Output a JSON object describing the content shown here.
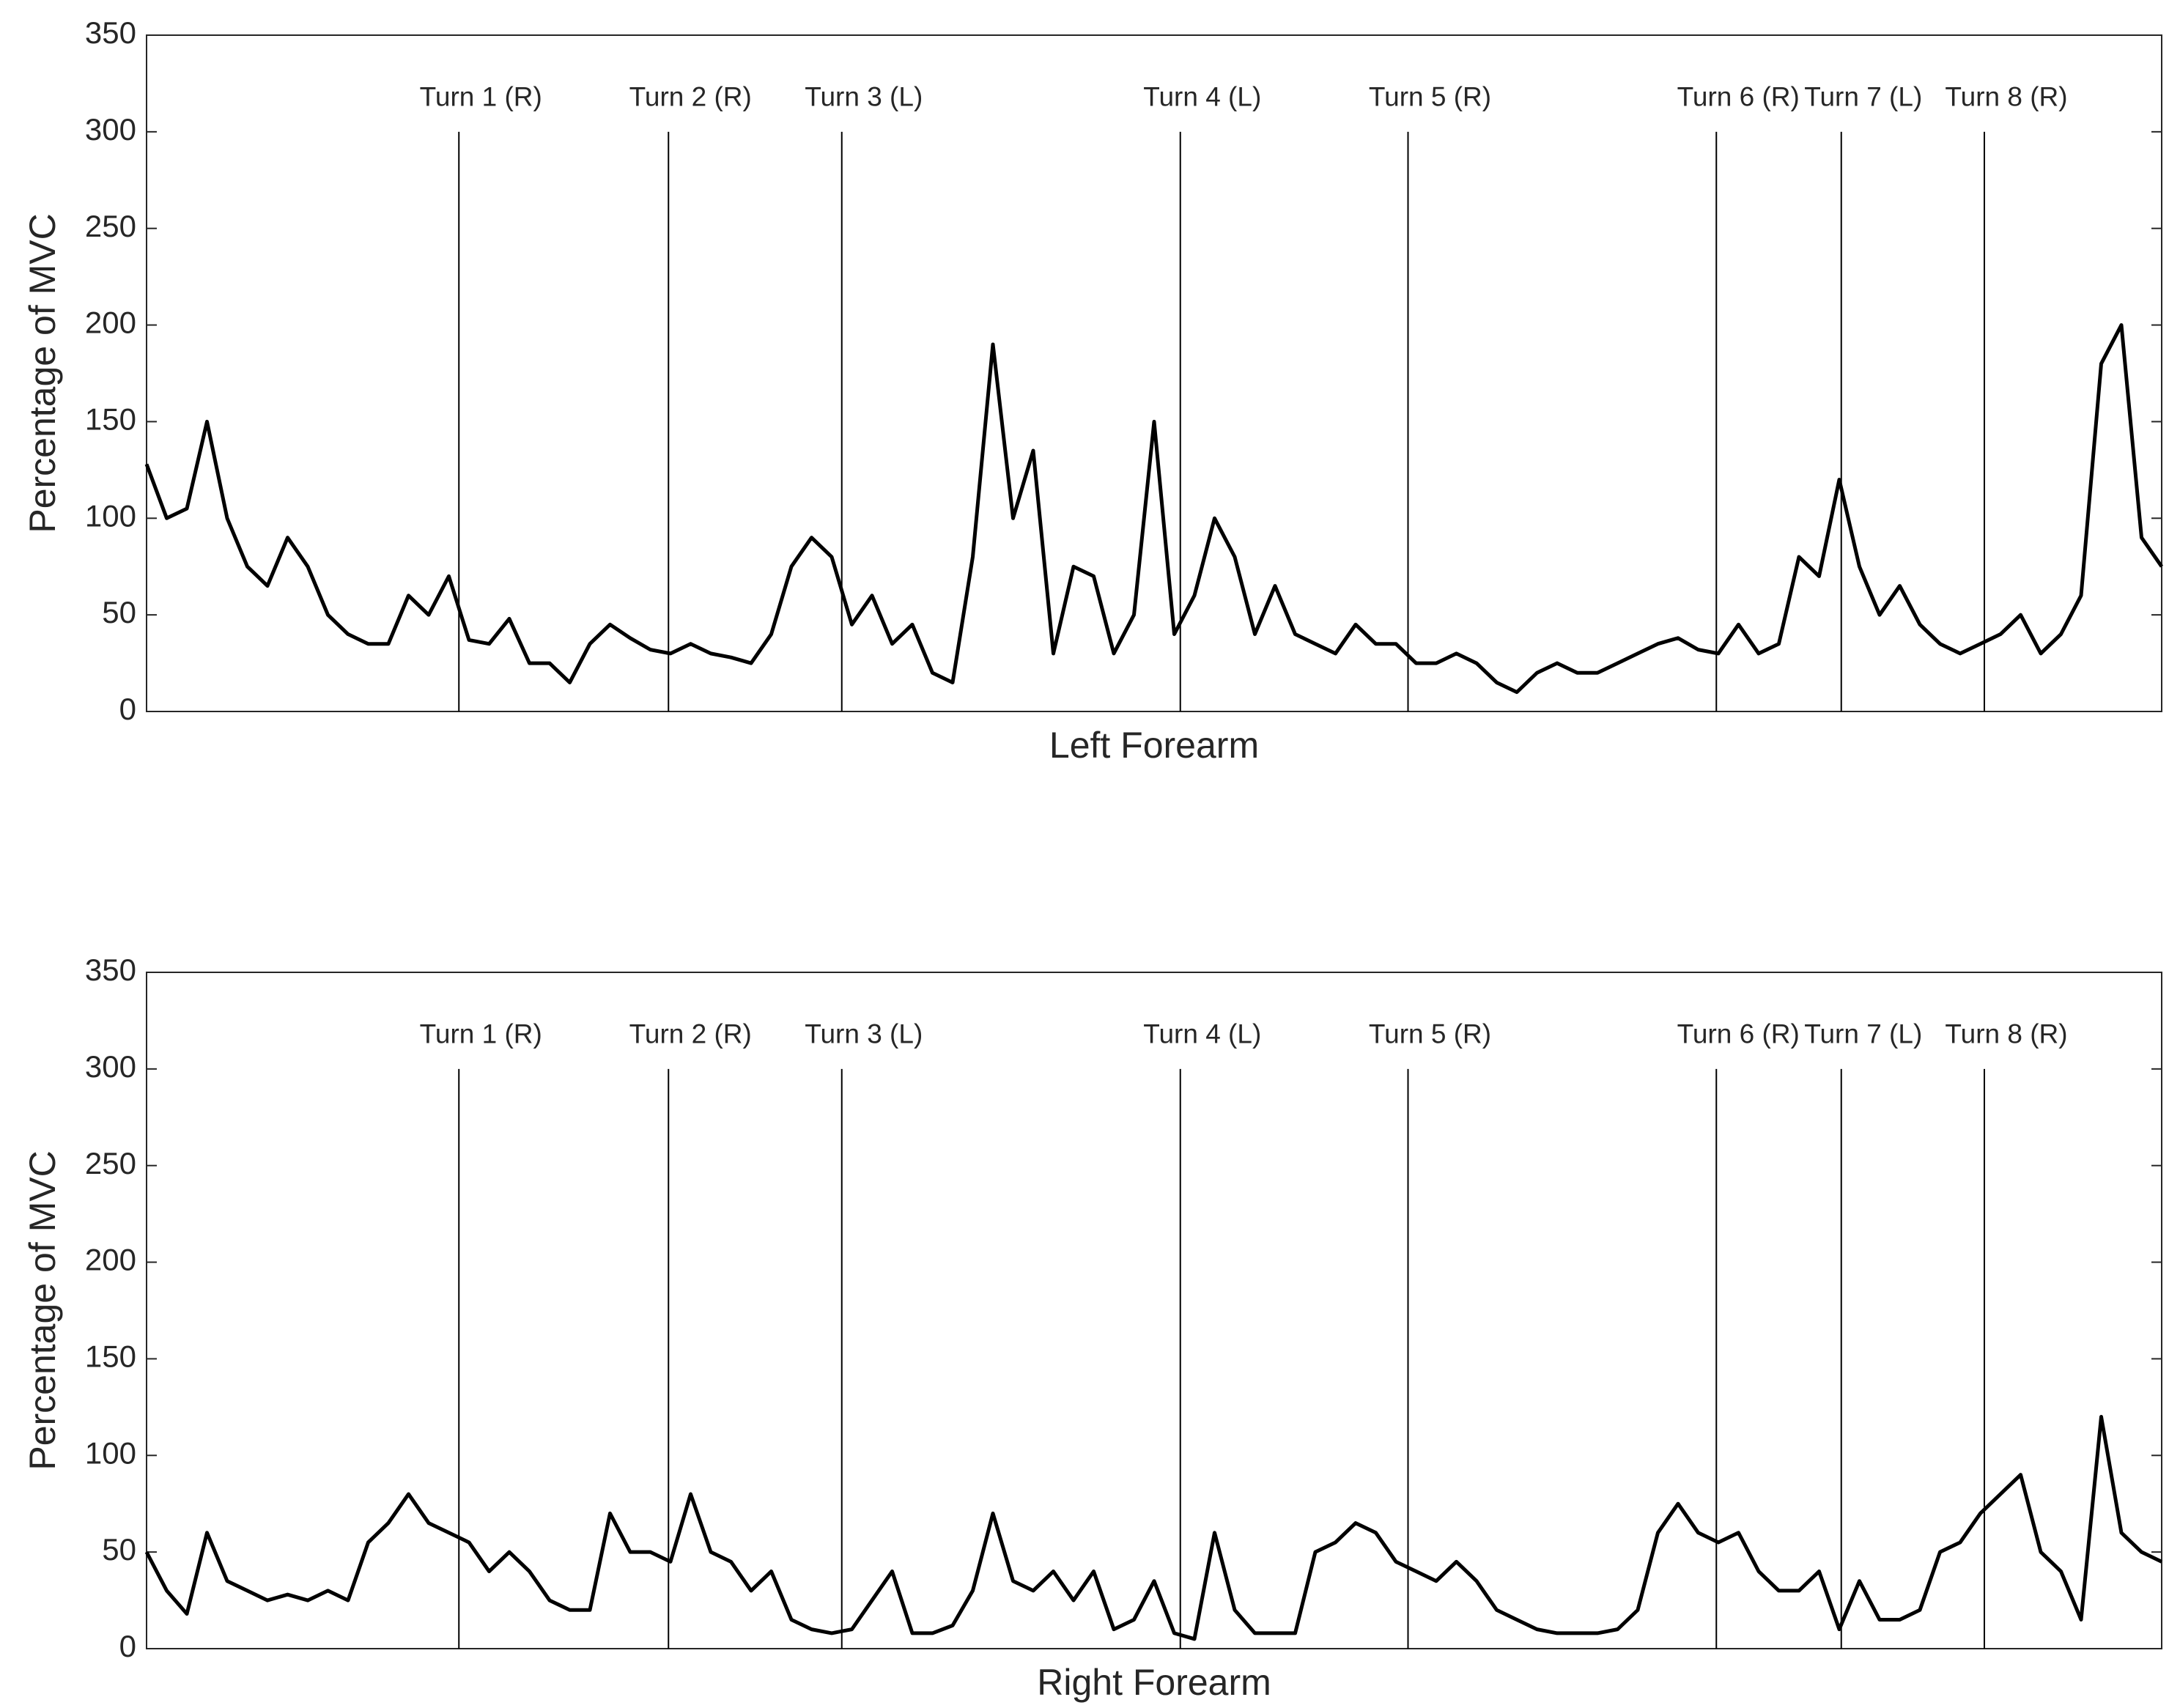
{
  "chart_data": [
    {
      "type": "line",
      "ylabel": "Percentage of MVC",
      "xlabel": "Left Forearm",
      "xlim": [
        0,
        100
      ],
      "ylim": [
        0,
        350
      ],
      "yticks": [
        0,
        50,
        100,
        150,
        200,
        250,
        300,
        350
      ],
      "grid": false,
      "annotation_top": 300,
      "annotations": [
        {
          "label": "Turn 1 (R)",
          "x": 15.5
        },
        {
          "label": "Turn 2 (R)",
          "x": 25.9
        },
        {
          "label": "Turn 3 (L)",
          "x": 34.5
        },
        {
          "label": "Turn 4 (L)",
          "x": 51.3
        },
        {
          "label": "Turn 5 (R)",
          "x": 62.6
        },
        {
          "label": "Turn 6 (R)",
          "x": 77.9
        },
        {
          "label": "Turn 7 (L)",
          "x": 84.1
        },
        {
          "label": "Turn 8 (R)",
          "x": 91.2
        }
      ],
      "series": [
        {
          "color": "#000000",
          "values": [
            128,
            100,
            105,
            150,
            100,
            75,
            65,
            90,
            75,
            50,
            40,
            35,
            35,
            60,
            50,
            70,
            37,
            35,
            48,
            25,
            25,
            15,
            35,
            45,
            38,
            32,
            30,
            35,
            30,
            28,
            25,
            40,
            75,
            90,
            80,
            45,
            60,
            35,
            45,
            20,
            15,
            80,
            190,
            100,
            135,
            30,
            75,
            70,
            30,
            50,
            150,
            40,
            60,
            100,
            80,
            40,
            65,
            40,
            35,
            30,
            45,
            35,
            35,
            25,
            25,
            30,
            25,
            15,
            10,
            20,
            25,
            20,
            20,
            25,
            30,
            35,
            38,
            32,
            30,
            45,
            30,
            35,
            80,
            70,
            120,
            75,
            50,
            65,
            45,
            35,
            30,
            35,
            40,
            50,
            30,
            40,
            60,
            180,
            200,
            90,
            75
          ]
        }
      ]
    },
    {
      "type": "line",
      "ylabel": "Percentage of MVC",
      "xlabel": "Right Forearm",
      "xlim": [
        0,
        100
      ],
      "ylim": [
        0,
        350
      ],
      "yticks": [
        0,
        50,
        100,
        150,
        200,
        250,
        300,
        350
      ],
      "grid": false,
      "annotation_top": 300,
      "annotations": [
        {
          "label": "Turn 1 (R)",
          "x": 15.5
        },
        {
          "label": "Turn 2 (R)",
          "x": 25.9
        },
        {
          "label": "Turn 3 (L)",
          "x": 34.5
        },
        {
          "label": "Turn 4 (L)",
          "x": 51.3
        },
        {
          "label": "Turn 5 (R)",
          "x": 62.6
        },
        {
          "label": "Turn 6 (R)",
          "x": 77.9
        },
        {
          "label": "Turn 7 (L)",
          "x": 84.1
        },
        {
          "label": "Turn 8 (R)",
          "x": 91.2
        }
      ],
      "series": [
        {
          "color": "#000000",
          "values": [
            50,
            30,
            18,
            60,
            35,
            30,
            25,
            28,
            25,
            30,
            25,
            55,
            65,
            80,
            65,
            60,
            55,
            40,
            50,
            40,
            25,
            20,
            20,
            70,
            50,
            50,
            45,
            80,
            50,
            45,
            30,
            40,
            15,
            10,
            8,
            10,
            25,
            40,
            8,
            8,
            12,
            30,
            70,
            35,
            30,
            40,
            25,
            40,
            10,
            15,
            35,
            8,
            5,
            60,
            20,
            8,
            8,
            8,
            50,
            55,
            65,
            60,
            45,
            40,
            35,
            45,
            35,
            20,
            15,
            10,
            8,
            8,
            8,
            10,
            20,
            60,
            75,
            60,
            55,
            60,
            40,
            30,
            30,
            40,
            10,
            35,
            15,
            15,
            20,
            50,
            55,
            70,
            80,
            90,
            50,
            40,
            15,
            120,
            60,
            50,
            45
          ]
        }
      ]
    }
  ]
}
